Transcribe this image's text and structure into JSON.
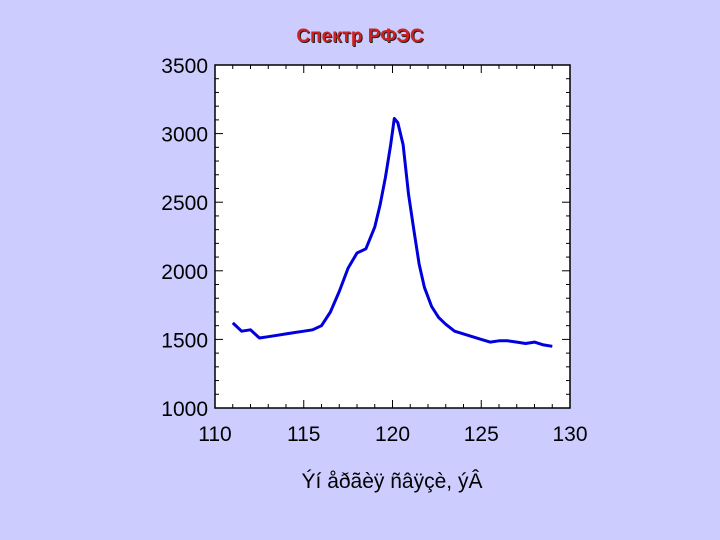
{
  "slide": {
    "title": "Спектр РФЭС"
  },
  "colors": {
    "background": "#ccccff",
    "plot_area": "#ffffff",
    "line": "#0000dd",
    "title": "#cc2222"
  },
  "chart_data": {
    "type": "line",
    "title": "Спектр РФЭС",
    "xlabel": "Ýí åðãèÿ ñâÿçè, ýÂ",
    "ylabel": "",
    "xlim": [
      110,
      130
    ],
    "ylim": [
      1000,
      3500
    ],
    "xticks": [
      "110",
      "115",
      "120",
      "125",
      "130"
    ],
    "yticks": [
      "1000",
      "1500",
      "2000",
      "2500",
      "3000",
      "3500"
    ],
    "grid": false,
    "legend": "none",
    "series": [
      {
        "x": [
          111.0,
          111.5,
          112.0,
          112.5,
          113.0,
          113.5,
          114.0,
          114.5,
          115.0,
          115.5,
          116.0,
          116.5,
          117.0,
          117.5,
          118.0,
          118.5,
          119.0,
          119.3,
          119.6,
          119.9,
          120.1,
          120.3,
          120.6,
          120.9,
          121.2,
          121.5,
          121.8,
          122.2,
          122.6,
          123.0,
          123.5,
          124.0,
          124.5,
          125.0,
          125.5,
          126.0,
          126.5,
          127.0,
          127.5,
          128.0,
          128.5,
          129.0
        ],
        "y": [
          1620,
          1560,
          1570,
          1510,
          1520,
          1530,
          1540,
          1550,
          1560,
          1570,
          1600,
          1700,
          1850,
          2020,
          2130,
          2160,
          2320,
          2480,
          2680,
          2920,
          3110,
          3080,
          2920,
          2560,
          2300,
          2050,
          1880,
          1740,
          1660,
          1610,
          1560,
          1540,
          1520,
          1500,
          1480,
          1490,
          1490,
          1480,
          1470,
          1480,
          1460,
          1450
        ]
      }
    ]
  }
}
